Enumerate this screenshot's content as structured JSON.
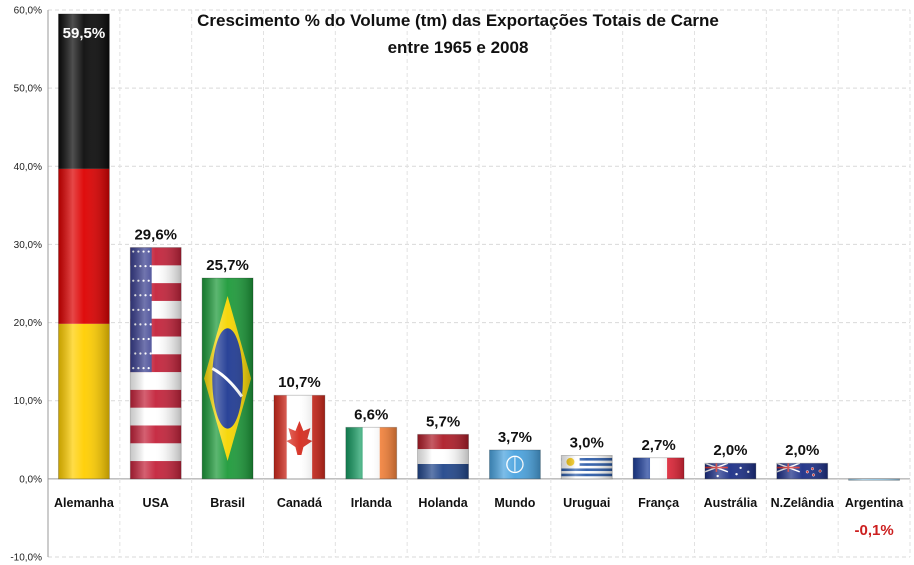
{
  "chart_data": {
    "type": "bar",
    "title_line1": "Crescimento % do Volume (tm) das Exportações Totais de Carne",
    "title_line2": "entre 1965 e 2008",
    "categories": [
      "Alemanha",
      "USA",
      "Brasil",
      "Canadá",
      "Irlanda",
      "Holanda",
      "Mundo",
      "Uruguai",
      "França",
      "Austrália",
      "N.Zelândia",
      "Argentina"
    ],
    "values": [
      59.5,
      29.6,
      25.7,
      10.7,
      6.6,
      5.7,
      3.7,
      3.0,
      2.7,
      2.0,
      2.0,
      -0.1
    ],
    "value_labels": [
      "59,5%",
      "29,6%",
      "25,7%",
      "10,7%",
      "6,6%",
      "5,7%",
      "3,7%",
      "3,0%",
      "2,7%",
      "2,0%",
      "2,0%",
      "-0,1%"
    ],
    "bar_fills": [
      "flag-germany",
      "flag-usa",
      "flag-brazil",
      "flag-canada",
      "flag-ireland",
      "flag-netherlands",
      "flag-un",
      "flag-uruguay",
      "flag-france",
      "flag-australia",
      "flag-new-zealand",
      "flag-argentina"
    ],
    "ylim": [
      -10,
      60
    ],
    "yticks": [
      "-10,0%",
      "0,0%",
      "10,0%",
      "20,0%",
      "30,0%",
      "40,0%",
      "50,0%",
      "60,0%"
    ],
    "ytick_values": [
      -10,
      0,
      10,
      20,
      30,
      40,
      50,
      60
    ],
    "grid": true,
    "legend": "none",
    "negative_label_color": "#cc1f1f"
  }
}
